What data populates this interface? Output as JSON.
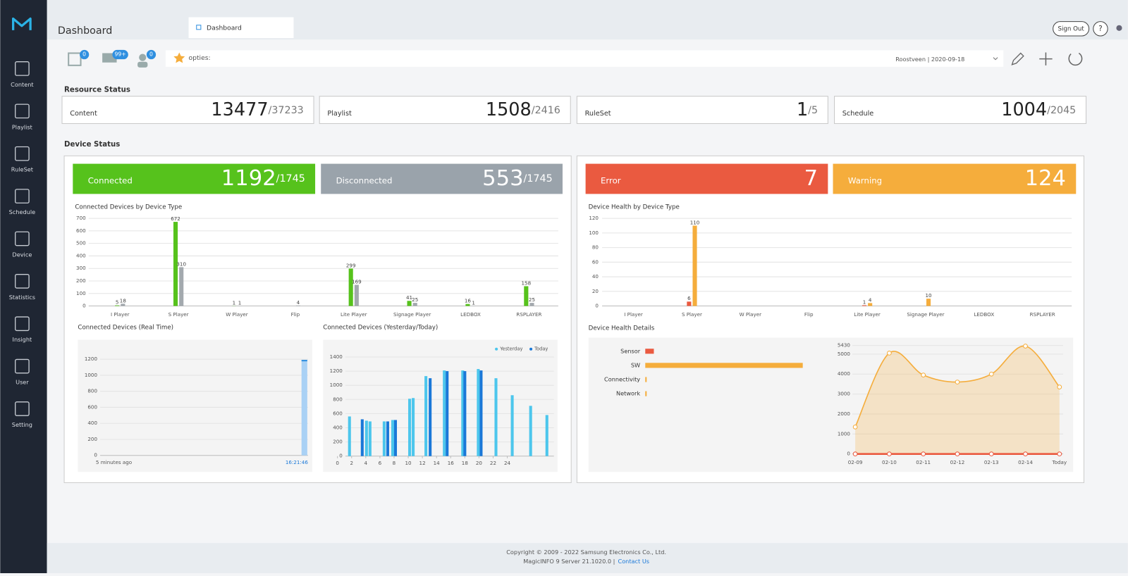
{
  "sidebar": {
    "items": [
      "Content",
      "Playlist",
      "RuleSet",
      "Schedule",
      "Device",
      "Statistics",
      "Insight",
      "User",
      "Setting"
    ]
  },
  "header": {
    "title": "Dashboard",
    "tab": "Dashboard",
    "sign_out": "Sign Out",
    "help": "?"
  },
  "toolbar": {
    "badges": [
      "0",
      "99+",
      "0"
    ],
    "search": "opties:",
    "selector": "Roostveen | 2020-09-18"
  },
  "resource_status": {
    "title": "Resource Status",
    "cards": [
      {
        "label": "Content",
        "value": "13477",
        "total": "/37233"
      },
      {
        "label": "Playlist",
        "value": "1508",
        "total": "/2416"
      },
      {
        "label": "RuleSet",
        "value": "1",
        "total": "/5"
      },
      {
        "label": "Schedule",
        "value": "1004",
        "total": "/2045"
      }
    ]
  },
  "device_status": {
    "title": "Device Status",
    "tiles": [
      {
        "label": "Connected",
        "value": "1192",
        "total": "/1745",
        "color": "#56c21c"
      },
      {
        "label": "Disconnected",
        "value": "553",
        "total": "/1745",
        "color": "#9aa3ab"
      },
      {
        "label": "Error",
        "value": "7",
        "color": "#ea5a40"
      },
      {
        "label": "Warning",
        "value": "124",
        "color": "#f5ad3c"
      }
    ]
  },
  "chart_data": [
    {
      "type": "bar",
      "title": "Connected Devices by Device Type",
      "categories": [
        "I Player",
        "S Player",
        "W Player",
        "Flip",
        "Lite Player",
        "Signage Player",
        "LEDBOX",
        "RSPLAYER"
      ],
      "series": [
        {
          "color": "#56c21c",
          "values": [
            5,
            672,
            1,
            null,
            299,
            41,
            16,
            158
          ]
        },
        {
          "color": "#a3a9ae",
          "values": [
            18,
            310,
            1,
            4,
            169,
            25,
            1,
            25
          ]
        }
      ],
      "ylim": [
        0,
        700
      ],
      "yticks": [
        0,
        100,
        200,
        300,
        400,
        500,
        600,
        700
      ],
      "grid": true
    },
    {
      "type": "bar",
      "title": "Device Health by Device Type",
      "categories": [
        "I Player",
        "S Player",
        "W Player",
        "Flip",
        "Lite Player",
        "Signage Player",
        "LEDBOX",
        "RSPLAYER"
      ],
      "series": [
        {
          "color": "#ea5a40",
          "values": [
            null,
            6,
            null,
            null,
            1,
            null,
            null,
            null
          ]
        },
        {
          "color": "#f5ad3c",
          "values": [
            null,
            110,
            null,
            null,
            4,
            10,
            null,
            null
          ]
        }
      ],
      "ylim": [
        0,
        120
      ],
      "yticks": [
        0,
        20,
        40,
        60,
        80,
        100,
        120
      ],
      "grid": true
    },
    {
      "type": "bar",
      "title": "Connected Devices (Real Time)",
      "x_labels": [
        "5 minutes ago",
        "16:21:46"
      ],
      "values": [
        1192
      ],
      "color": "#a9d1f5",
      "ylim": [
        0,
        1300
      ],
      "yticks": [
        0,
        200,
        400,
        600,
        800,
        1000,
        1200
      ],
      "grid": true
    },
    {
      "type": "bar",
      "title": "Connected Devices (Yesterday/Today)",
      "xlim": [
        0,
        31
      ],
      "xticks": [
        0,
        2,
        4,
        6,
        8,
        10,
        12,
        14,
        16,
        18,
        20,
        22,
        24
      ],
      "ylim": [
        0,
        1400
      ],
      "yticks": [
        0,
        200,
        400,
        600,
        800,
        1000,
        1200,
        1400
      ],
      "grid": true,
      "legend": "top-right",
      "series": [
        {
          "name": "Yesterday",
          "color": "#4cc6ec",
          "x": [
            1.7,
            4.1,
            4.6,
            6.6,
            7.8,
            10.2,
            10.7,
            12.5,
            15.1,
            17.7,
            19.9,
            22.4,
            24.7,
            27.3,
            29.6
          ],
          "values": [
            560,
            500,
            490,
            490,
            510,
            810,
            820,
            1130,
            1210,
            1210,
            1230,
            1100,
            860,
            710,
            580
          ]
        },
        {
          "name": "Today",
          "color": "#1a78d8",
          "x": [
            3.5,
            7.1,
            8.2,
            13.1,
            15.5,
            18,
            20.3
          ],
          "values": [
            520,
            490,
            510,
            1100,
            1200,
            1200,
            1210
          ]
        }
      ]
    },
    {
      "type": "bar",
      "title": "Device Health Details",
      "orientation": "horizontal",
      "categories": [
        "Sensor",
        "SW",
        "Connectivity",
        "Network"
      ],
      "values": [
        6,
        110,
        1,
        1
      ],
      "colors": [
        "#ea5a40",
        "#f5ad3c",
        "#f5ad3c",
        "#f5ad3c"
      ],
      "xlim": [
        0,
        110
      ]
    },
    {
      "type": "line",
      "categories": [
        "02-09",
        "02-10",
        "02-11",
        "02-12",
        "02-13",
        "02-14",
        "Today"
      ],
      "series": [
        {
          "color": "#f5ad3c",
          "values": [
            1350,
            5050,
            3950,
            3600,
            4000,
            5400,
            3350
          ],
          "area": true
        },
        {
          "color": "#ea5a40",
          "values": [
            0,
            0,
            0,
            0,
            0,
            0,
            0
          ]
        }
      ],
      "ylim": [
        0,
        5430
      ],
      "yticks": [
        0,
        1000,
        2000,
        3000,
        4000,
        5000,
        5430
      ],
      "grid": true
    }
  ],
  "footer": {
    "copyright": "Copyright © 2009 - 2022 Samsung Electronics Co., Ltd.",
    "version": "MagicINFO 9 Server 21.1020.0 |",
    "contact": "Contact Us"
  }
}
